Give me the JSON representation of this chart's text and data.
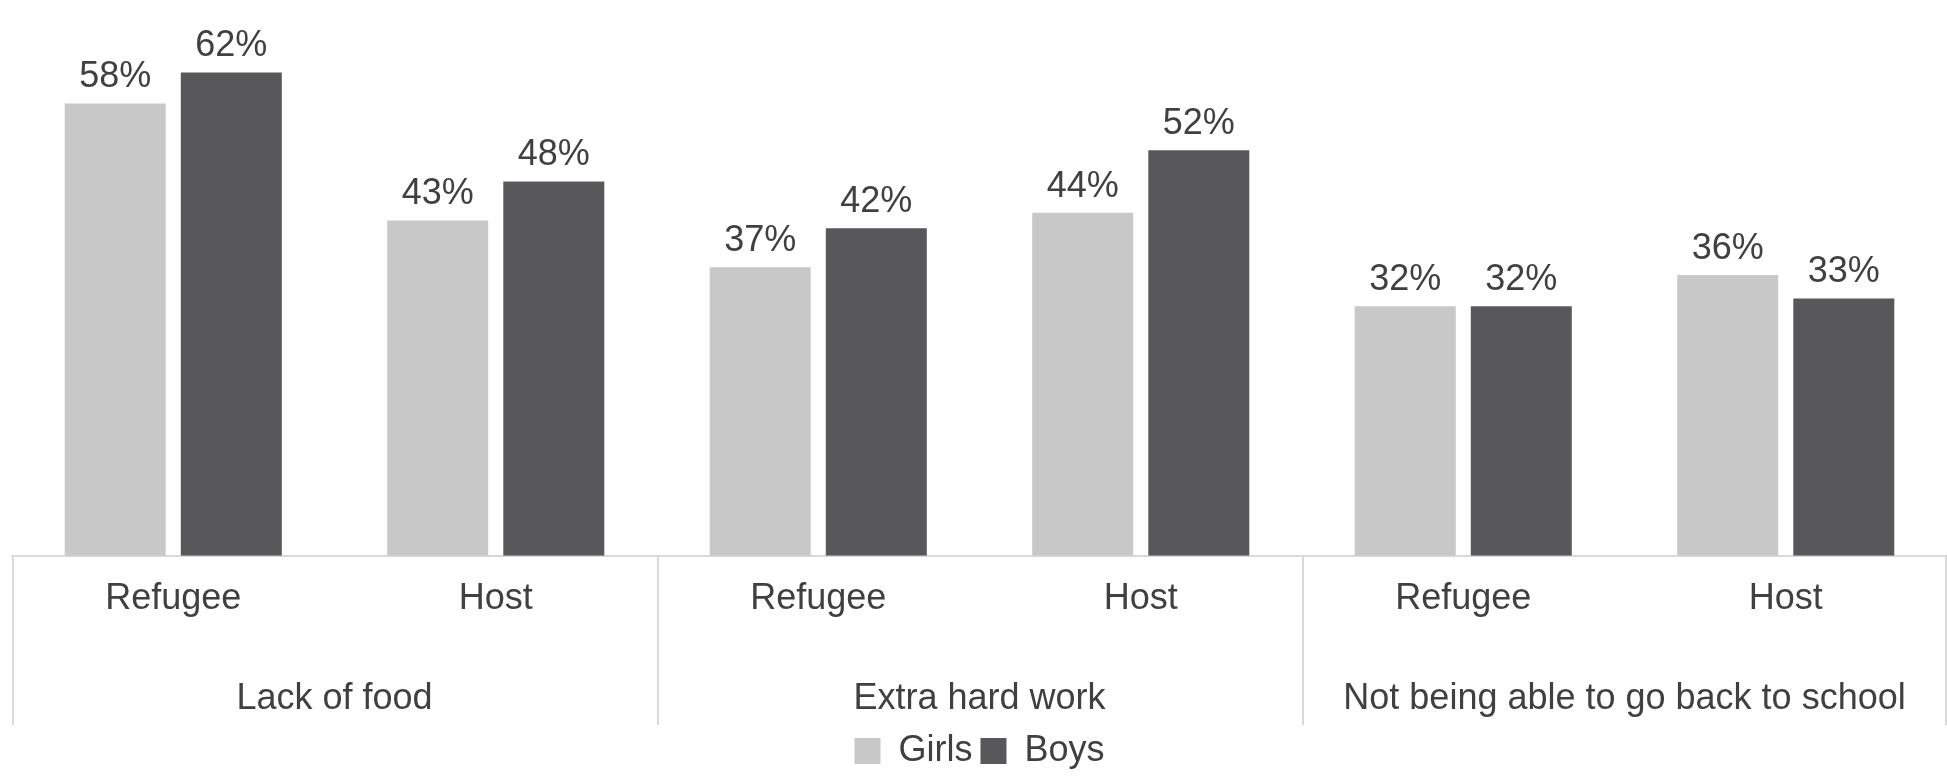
{
  "chart_data": {
    "type": "bar",
    "categories": [
      "Refugee",
      "Host",
      "Refugee",
      "Host",
      "Refugee",
      "Host"
    ],
    "annotations": [
      "Lack of food",
      "Extra hard work",
      "Not being able to go back to school"
    ],
    "series": [
      {
        "name": "Girls",
        "color": "#c8c8c9",
        "values": [
          58,
          43,
          37,
          44,
          32,
          36
        ],
        "value_labels": [
          "58%",
          "43%",
          "37%",
          "44%",
          "32%",
          "36%"
        ]
      },
      {
        "name": "Boys",
        "color": "#58585a",
        "values": [
          62,
          48,
          42,
          52,
          32,
          33
        ],
        "value_labels": [
          "62%",
          "48%",
          "42%",
          "52%",
          "32%",
          "33%"
        ]
      }
    ],
    "legend": "bottom",
    "grid": false
  }
}
